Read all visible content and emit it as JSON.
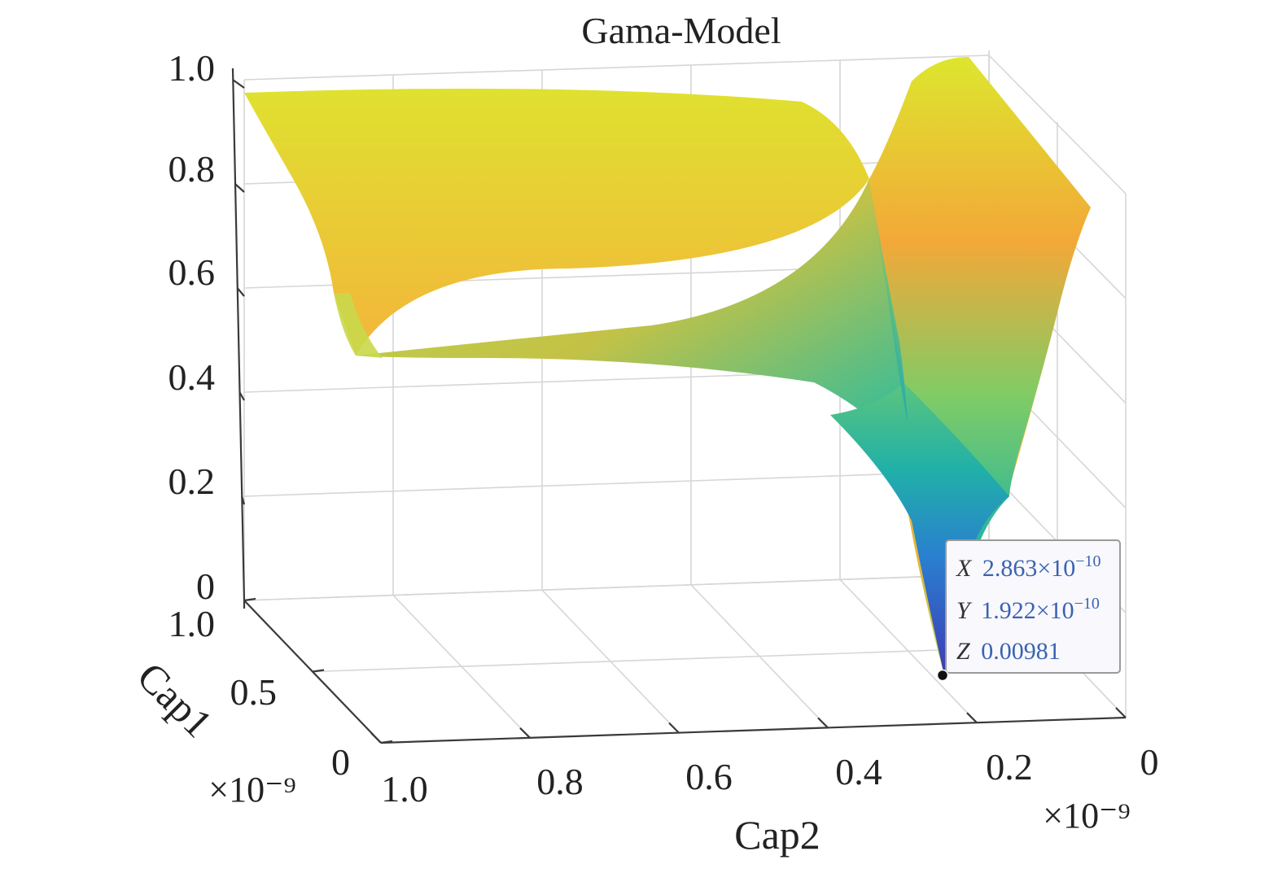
{
  "chart_data": {
    "type": "surface",
    "title": "Gama-Model",
    "xlabel": "Cap2",
    "ylabel": "Cap1",
    "zlabel": "",
    "x_multiplier": "×10⁻⁹",
    "y_multiplier": "×10⁻⁹",
    "x_ticks": [
      "1.0",
      "0.8",
      "0.6",
      "0.4",
      "0.2",
      "0"
    ],
    "y_ticks": [
      "1.0",
      "0.5",
      "0"
    ],
    "z_ticks": [
      "0",
      "0.2",
      "0.4",
      "0.6",
      "0.8",
      "1.0"
    ],
    "xlim": [
      0,
      1e-09
    ],
    "ylim": [
      0,
      1e-09
    ],
    "zlim": [
      0,
      1.0
    ],
    "grid": true,
    "colormap": "parula",
    "colors": {
      "low": "#3e3ab5",
      "mid": "#22b5a5",
      "high": "#f5a634",
      "top": "#dde62e"
    },
    "datatip": {
      "x_label": "X",
      "x_value": "2.863×10",
      "x_exp": "−10",
      "y_label": "Y",
      "y_value": "1.922×10",
      "y_exp": "−10",
      "z_label": "Z",
      "z_value": "0.00981",
      "x": 2.863e-10,
      "y": 1.922e-10,
      "z": 0.00981
    }
  }
}
